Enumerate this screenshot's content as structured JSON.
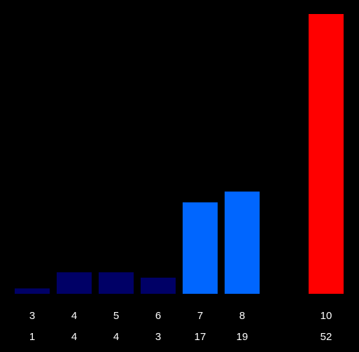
{
  "chart_data": {
    "type": "bar",
    "categories": [
      "3",
      "4",
      "5",
      "6",
      "7",
      "8",
      null,
      "10"
    ],
    "values": [
      1,
      4,
      4,
      3,
      17,
      19,
      null,
      52
    ],
    "colors": [
      "#000066",
      "#000066",
      "#000066",
      "#000066",
      "#0066ff",
      "#0066ff",
      null,
      "#ff0000"
    ]
  }
}
